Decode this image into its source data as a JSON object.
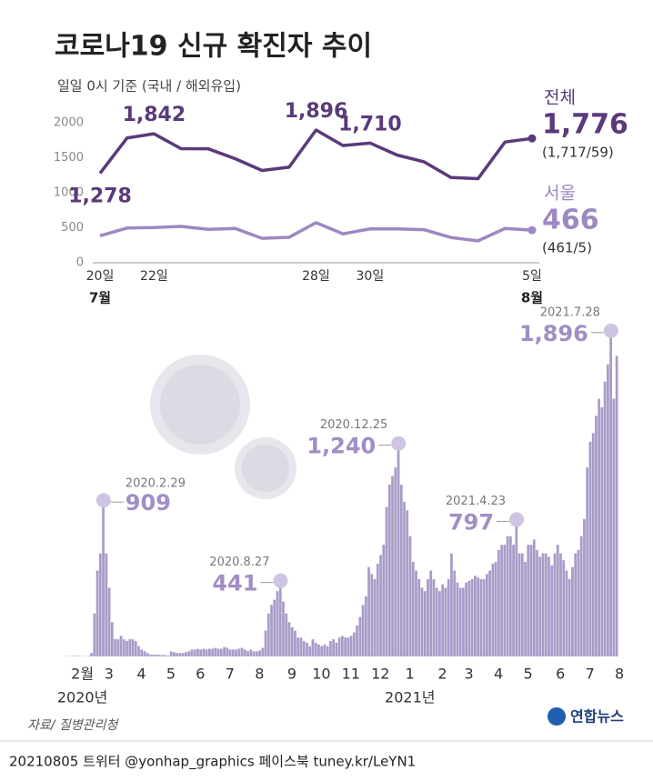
{
  "title": "코로나19 신규 확진자 추이",
  "subtitle": "일일 0시 기준 (국내 / 해외유입)",
  "source": "자료/ 질병관리청",
  "logo": "연합뉴스",
  "footer": "20210805 트위터 @yonhap_graphics  페이스북 tuney.kr/LeYN1",
  "chart_data": [
    {
      "type": "line",
      "categories": [
        "20일",
        null,
        "22일",
        null,
        null,
        null,
        null,
        null,
        "28일",
        null,
        "30일",
        null,
        null,
        null,
        null,
        null,
        "5일"
      ],
      "category_months": [
        "7월",
        null,
        null,
        null,
        null,
        null,
        null,
        null,
        null,
        null,
        null,
        null,
        null,
        null,
        null,
        null,
        "8월"
      ],
      "ylim": [
        0,
        2000
      ],
      "yticks": [
        0,
        500,
        1000,
        1500,
        2000
      ],
      "series": [
        {
          "name": "전체",
          "color": "#5a3a7a",
          "values": [
            1278,
            1782,
            1842,
            1630,
            1629,
            1487,
            1318,
            1365,
            1896,
            1674,
            1710,
            1539,
            1442,
            1218,
            1202,
            1725,
            1776
          ],
          "value_labels": [
            "1,278",
            null,
            "1,842",
            null,
            null,
            null,
            null,
            null,
            "1,896",
            null,
            "1,710",
            null,
            null,
            null,
            null,
            null,
            "1,776"
          ],
          "note": "(1,717/59)"
        },
        {
          "name": "서울",
          "color": "#9d88c2",
          "values": [
            385,
            496,
            503,
            519,
            477,
            491,
            349,
            363,
            573,
            413,
            484,
            484,
            472,
            361,
            313,
            490,
            466
          ],
          "note": "(461/5)"
        }
      ]
    },
    {
      "type": "bar",
      "color": "#a99bc8",
      "ylim": [
        0,
        1900
      ],
      "values": [
        1,
        1,
        2,
        3,
        3,
        2,
        1,
        1,
        3,
        20,
        250,
        500,
        600,
        909,
        600,
        400,
        200,
        100,
        100,
        120,
        100,
        90,
        100,
        100,
        90,
        60,
        40,
        30,
        20,
        10,
        10,
        10,
        10,
        8,
        8,
        5,
        30,
        25,
        20,
        20,
        20,
        25,
        30,
        40,
        40,
        45,
        40,
        45,
        40,
        45,
        45,
        50,
        45,
        45,
        55,
        50,
        40,
        40,
        40,
        45,
        50,
        40,
        30,
        40,
        30,
        30,
        35,
        50,
        150,
        250,
        300,
        330,
        380,
        441,
        320,
        250,
        200,
        170,
        150,
        110,
        110,
        90,
        80,
        60,
        100,
        80,
        70,
        60,
        70,
        60,
        90,
        100,
        80,
        110,
        120,
        110,
        110,
        120,
        140,
        180,
        230,
        300,
        350,
        520,
        480,
        450,
        540,
        590,
        650,
        870,
        1000,
        1050,
        1100,
        1240,
        1000,
        900,
        850,
        700,
        550,
        500,
        450,
        400,
        380,
        450,
        500,
        450,
        400,
        380,
        420,
        400,
        450,
        600,
        500,
        430,
        400,
        400,
        430,
        440,
        450,
        470,
        460,
        450,
        450,
        480,
        500,
        540,
        550,
        620,
        650,
        650,
        700,
        700,
        650,
        797,
        600,
        600,
        550,
        650,
        650,
        680,
        620,
        580,
        600,
        600,
        580,
        530,
        600,
        650,
        600,
        560,
        500,
        450,
        520,
        600,
        620,
        700,
        800,
        1100,
        1250,
        1300,
        1400,
        1500,
        1450,
        1600,
        1700,
        1896,
        1500,
        1750
      ],
      "categories": [
        null,
        null,
        null,
        null,
        "2월",
        null,
        null,
        null,
        null,
        null,
        null,
        null,
        null,
        "3",
        null,
        null,
        null,
        null,
        null,
        null,
        null,
        null,
        null,
        null,
        "4",
        null,
        null,
        null,
        null,
        null,
        null,
        null,
        null,
        null,
        "5",
        null,
        null,
        null,
        null,
        null,
        null,
        null,
        null,
        null,
        "6",
        null,
        null,
        null,
        null,
        null,
        null,
        null,
        null,
        null,
        "7",
        null,
        null,
        null,
        null,
        null,
        null,
        null,
        null,
        null,
        "8",
        null,
        null,
        null,
        null,
        null,
        null,
        null,
        null,
        null,
        null,
        "9",
        null,
        null,
        null,
        null,
        null,
        null,
        null,
        null,
        null,
        "10",
        null,
        null,
        null,
        null,
        null,
        null,
        null,
        null,
        null,
        "11",
        null,
        null,
        null,
        null,
        null,
        null,
        null,
        null,
        null,
        "12",
        null,
        null,
        null,
        null,
        null,
        null,
        null,
        null,
        null,
        "1",
        null,
        null,
        null,
        null,
        null,
        null,
        null,
        null,
        null,
        null,
        "2",
        null,
        null,
        null,
        null,
        null,
        null,
        null,
        null,
        "3",
        null,
        null,
        null,
        null,
        null,
        null,
        null,
        null,
        null,
        "4",
        null,
        null,
        null,
        null,
        null,
        null,
        null,
        null,
        null,
        "5",
        null,
        null,
        null,
        null,
        null,
        null,
        null,
        null,
        null,
        null,
        "6",
        null,
        null,
        null,
        null,
        null,
        null,
        null,
        null,
        null,
        "7",
        null,
        null,
        null,
        null,
        null,
        null,
        null,
        null,
        null,
        "8",
        null
      ],
      "category_years": [
        null,
        null,
        null,
        null,
        "2020년",
        null,
        null,
        null,
        null,
        null,
        null,
        null,
        null,
        null,
        null,
        null,
        null,
        null,
        null,
        null,
        null,
        null,
        null,
        null,
        null,
        null,
        null,
        null,
        null,
        null,
        null,
        null,
        null,
        null,
        null,
        null,
        null,
        null,
        null,
        null,
        null,
        null,
        null,
        null,
        null,
        null,
        null,
        null,
        null,
        null,
        null,
        null,
        null,
        null,
        null,
        null,
        null,
        null,
        null,
        null,
        null,
        null,
        null,
        null,
        null,
        null,
        null,
        null,
        null,
        null,
        null,
        null,
        null,
        null,
        null,
        null,
        null,
        null,
        null,
        null,
        null,
        null,
        null,
        null,
        null,
        null,
        null,
        null,
        null,
        null,
        null,
        null,
        null,
        null,
        null,
        null,
        null,
        null,
        null,
        null,
        null,
        null,
        null,
        null,
        null,
        null,
        null,
        null,
        null,
        null,
        null,
        null,
        null,
        null,
        null,
        "2021년",
        null,
        null,
        null,
        null,
        null,
        null,
        null,
        null,
        null,
        null,
        null,
        null,
        null,
        null,
        null,
        null,
        null,
        null,
        null,
        null,
        null,
        null,
        null,
        null,
        null,
        null,
        null,
        null,
        null,
        null,
        null,
        null,
        null,
        null,
        null,
        null,
        null,
        null,
        null,
        null,
        null,
        null,
        null,
        null,
        null,
        null,
        null,
        null,
        null,
        null,
        null,
        null,
        null,
        null,
        null,
        null,
        null,
        null,
        null,
        null,
        null,
        null,
        null,
        null,
        null,
        null,
        null,
        null,
        null,
        null,
        null,
        null
      ],
      "date_labels": [
        null,
        null,
        null,
        null,
        null,
        null,
        null,
        null,
        null,
        null,
        null,
        null,
        null,
        "2020.2.29",
        null,
        null,
        null,
        null,
        null,
        null,
        null,
        null,
        null,
        null,
        null,
        null,
        null,
        null,
        null,
        null,
        null,
        null,
        null,
        null,
        null,
        null,
        null,
        null,
        null,
        null,
        null,
        null,
        null,
        null,
        null,
        null,
        null,
        null,
        null,
        null,
        null,
        null,
        null,
        null,
        null,
        null,
        null,
        null,
        null,
        null,
        null,
        null,
        null,
        null,
        null,
        null,
        null,
        null,
        null,
        null,
        null,
        null,
        null,
        "2020.8.27",
        null,
        null,
        null,
        null,
        null,
        null,
        null,
        null,
        null,
        null,
        null,
        null,
        null,
        null,
        null,
        null,
        null,
        null,
        null,
        null,
        null,
        null,
        null,
        null,
        null,
        null,
        null,
        null,
        null,
        null,
        null,
        null,
        null,
        null,
        null,
        null,
        null,
        null,
        null,
        "2020.12.25",
        null,
        null,
        null,
        null,
        null,
        null,
        null,
        null,
        null,
        null,
        null,
        null,
        null,
        null,
        null,
        null,
        null,
        null,
        null,
        null,
        null,
        null,
        null,
        null,
        null,
        null,
        null,
        null,
        null,
        null,
        null,
        null,
        null,
        null,
        null,
        null,
        null,
        null,
        null,
        "2021.4.23",
        null,
        null,
        null,
        null,
        null,
        null,
        null,
        null,
        null,
        null,
        null,
        null,
        null,
        null,
        null,
        null,
        null,
        null,
        null,
        null,
        null,
        null,
        null,
        null,
        null,
        null,
        null,
        null,
        null,
        null,
        null,
        "2021.7.28",
        null,
        null
      ],
      "value_labels": [
        null,
        null,
        null,
        null,
        null,
        null,
        null,
        null,
        null,
        null,
        null,
        null,
        null,
        null,
        null,
        null,
        null,
        null,
        null,
        null,
        null,
        null,
        null,
        null,
        null,
        null,
        null,
        null,
        null,
        null,
        null,
        null,
        null,
        null,
        null,
        null,
        null,
        null,
        null,
        null,
        null,
        null,
        null,
        null,
        null,
        null,
        null,
        null,
        null,
        null,
        null,
        null,
        null,
        null,
        null,
        null,
        null,
        null,
        null,
        null,
        null,
        null,
        null,
        null,
        null,
        null,
        null,
        null,
        null,
        null,
        null,
        null,
        null,
        null,
        null,
        null,
        null,
        null,
        null,
        null,
        null,
        null,
        null,
        null,
        null,
        null,
        null,
        null,
        null,
        null,
        null,
        null,
        null,
        null,
        null,
        null,
        null,
        null,
        null,
        null,
        null,
        null,
        null,
        null,
        null,
        null,
        null,
        null,
        null,
        null,
        null,
        null,
        null,
        "1,240",
        null,
        null,
        null,
        null,
        null,
        null,
        null,
        null,
        null,
        null,
        null,
        null,
        null,
        null,
        null,
        null,
        null,
        null,
        null,
        null,
        null,
        null,
        null,
        null,
        null,
        null,
        null,
        null,
        null,
        null,
        null,
        null,
        null,
        null,
        null,
        null,
        null,
        null,
        null,
        null,
        null,
        null,
        null,
        null,
        null,
        null,
        null,
        null,
        null,
        null,
        null,
        null,
        null,
        null,
        null,
        null,
        null,
        null,
        null,
        null,
        null,
        null,
        null,
        null,
        null,
        null,
        null,
        null,
        null,
        null,
        null,
        "1,896",
        null,
        null
      ]
    }
  ]
}
